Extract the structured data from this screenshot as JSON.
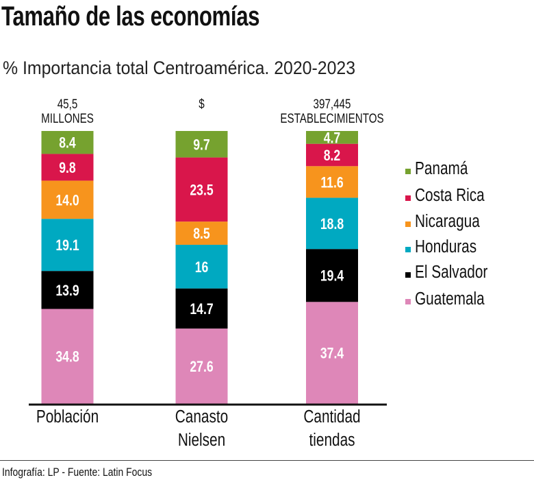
{
  "title": "Tamaño de las economías",
  "subtitle": "% Importancia  total Centroamérica. 2020-2023",
  "footer": "Infografía: LP - Fuente: Latin Focus",
  "chart_data": {
    "type": "bar",
    "stacked": true,
    "categories": [
      "Población",
      "Canasto Nielsen",
      "Cantidad tiendas"
    ],
    "category_lines": [
      [
        "Población"
      ],
      [
        "Canasto",
        "Nielsen"
      ],
      [
        "Cantidad",
        "tiendas"
      ]
    ],
    "top_labels": [
      [
        "45,5",
        "MILLONES"
      ],
      [
        "$"
      ],
      [
        "397,445",
        "ESTABLECIMIENTOS"
      ]
    ],
    "series": [
      {
        "name": "Guatemala",
        "color": "#de87b8",
        "values": [
          34.8,
          27.6,
          37.4
        ],
        "labels": [
          "34.8",
          "27.6",
          "37.4"
        ]
      },
      {
        "name": "El Salvador",
        "color": "#000000",
        "values": [
          13.9,
          14.7,
          19.4
        ],
        "labels": [
          "13.9",
          "14.7",
          "19.4"
        ]
      },
      {
        "name": "Honduras",
        "color": "#00a9c1",
        "values": [
          19.1,
          16,
          18.8
        ],
        "labels": [
          "19.1",
          "16",
          "18.8"
        ]
      },
      {
        "name": "Nicaragua",
        "color": "#f7941d",
        "values": [
          14.0,
          8.5,
          11.6
        ],
        "labels": [
          "14.0",
          "8.5",
          "11.6"
        ]
      },
      {
        "name": "Costa Rica",
        "color": "#d9164b",
        "values": [
          9.8,
          23.5,
          8.2
        ],
        "labels": [
          "9.8",
          "23.5",
          "8.2"
        ]
      },
      {
        "name": "Panamá",
        "color": "#76a22f",
        "values": [
          8.4,
          9.7,
          4.7
        ],
        "labels": [
          "8.4",
          "9.7",
          "4.7"
        ]
      }
    ],
    "legend_order": [
      "Panamá",
      "Costa Rica",
      "Nicaragua",
      "Honduras",
      "El Salvador",
      "Guatemala"
    ],
    "legend": "right",
    "ylim": [
      0,
      100
    ],
    "grid": false
  }
}
